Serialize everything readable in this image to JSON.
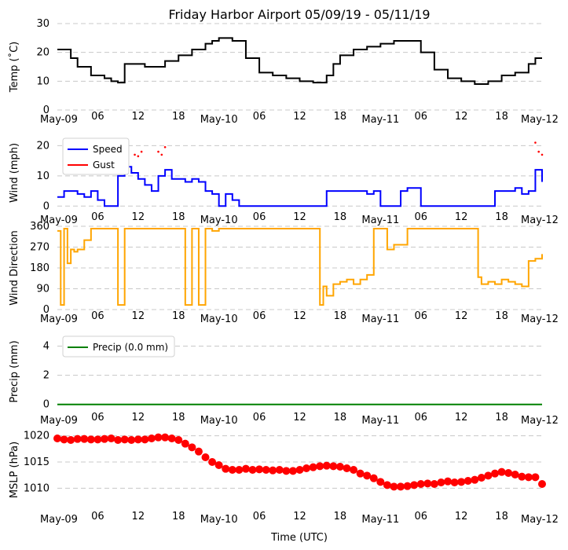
{
  "chart_data": [
    {
      "type": "line",
      "title": "Friday Harbor Airport 05/09/19 - 05/11/19",
      "ylabel": "Temp ($^\\circ$C)",
      "ylabel_display": "Temp (˚C)",
      "ylim": [
        0,
        30
      ],
      "yticks": [
        0,
        10,
        20,
        30
      ],
      "x_ticks": [
        "May-09",
        "06",
        "12",
        "18",
        "May-10",
        "06",
        "12",
        "18",
        "May-11",
        "06",
        "12",
        "18",
        "May-12"
      ],
      "x_hours_range": [
        0,
        72
      ],
      "grid": "y-dashed",
      "series": [
        {
          "name": "Temp",
          "color": "#000000",
          "x": [
            0,
            1,
            2,
            3,
            5,
            7,
            8,
            9,
            10,
            11,
            12,
            13,
            14,
            16,
            18,
            20,
            22,
            23,
            24,
            26,
            28,
            30,
            32,
            34,
            36,
            38,
            39,
            40,
            41,
            42,
            44,
            46,
            48,
            50,
            52,
            54,
            56,
            58,
            60,
            62,
            64,
            66,
            68,
            70,
            71,
            72
          ],
          "values": [
            21,
            21,
            18,
            15,
            12,
            11,
            10,
            9.5,
            16,
            16,
            16,
            15,
            15,
            17,
            19,
            21,
            23,
            24,
            25,
            24,
            18,
            13,
            12,
            11,
            10,
            9.5,
            9.5,
            12,
            16,
            19,
            21,
            22,
            23,
            24,
            24,
            20,
            14,
            11,
            10,
            9,
            10,
            12,
            13,
            16,
            18,
            18
          ]
        }
      ]
    },
    {
      "type": "line",
      "ylabel": "Wind (mph)",
      "ylim": [
        -2,
        24
      ],
      "yticks": [
        0,
        10,
        20
      ],
      "x_ticks": [
        "May-09",
        "06",
        "12",
        "18",
        "May-10",
        "06",
        "12",
        "18",
        "May-11",
        "06",
        "12",
        "18",
        "May-12"
      ],
      "legend": {
        "placement": "top-left",
        "entries": [
          "Speed",
          "Gust"
        ]
      },
      "grid": "y-dashed",
      "series": [
        {
          "name": "Speed",
          "color": "#0000ff",
          "x": [
            0,
            1,
            2,
            3,
            4,
            5,
            6,
            7,
            8,
            9,
            10,
            11,
            12,
            13,
            14,
            15,
            16,
            17,
            18,
            19,
            20,
            21,
            22,
            23,
            24,
            25,
            26,
            27,
            28,
            30,
            32,
            34,
            36,
            38,
            39,
            40,
            41,
            42,
            44,
            46,
            47,
            48,
            50,
            51,
            52,
            54,
            56,
            58,
            60,
            62,
            63,
            64,
            65,
            66,
            67,
            68,
            69,
            70,
            71,
            72
          ],
          "values": [
            3,
            5,
            5,
            4,
            3,
            5,
            2,
            0,
            0,
            10,
            13,
            11,
            9,
            7,
            5,
            10,
            12,
            9,
            9,
            8,
            9,
            8,
            5,
            4,
            0,
            4,
            2,
            0,
            0,
            0,
            0,
            0,
            0,
            0,
            0,
            5,
            5,
            5,
            5,
            4,
            5,
            0,
            0,
            5,
            6,
            0,
            0,
            0,
            0,
            0,
            0,
            0,
            5,
            5,
            5,
            6,
            4,
            5,
            12,
            8
          ]
        },
        {
          "name": "Gust",
          "color": "#ff0000",
          "x": [
            11.5,
            12,
            12.5,
            15,
            15.5,
            16,
            71,
            71.5,
            72
          ],
          "values": [
            17,
            16.5,
            18,
            18,
            17,
            19.5,
            21,
            18,
            17
          ]
        }
      ]
    },
    {
      "type": "line",
      "ylabel": "Wind Direction",
      "ylim": [
        0,
        360
      ],
      "yticks": [
        0,
        90,
        180,
        270,
        360
      ],
      "x_ticks": [
        "May-09",
        "06",
        "12",
        "18",
        "May-10",
        "06",
        "12",
        "18",
        "May-11",
        "06",
        "12",
        "18",
        "May-12"
      ],
      "grid": "y-dashed",
      "series": [
        {
          "name": "Direction",
          "color": "#ffa500",
          "x": [
            0,
            0.5,
            1,
            1.5,
            2,
            2.5,
            3,
            4,
            5,
            6,
            8,
            9,
            10,
            12,
            14,
            16,
            18,
            19,
            20,
            21,
            22,
            23,
            24,
            26,
            28,
            30,
            32,
            34,
            36,
            38,
            39,
            39.5,
            40,
            41,
            42,
            43,
            44,
            45,
            46,
            47,
            48,
            49,
            50,
            52,
            54,
            56,
            58,
            60,
            62,
            62.5,
            63,
            64,
            65,
            66,
            67,
            68,
            69,
            70,
            71,
            72
          ],
          "values": [
            340,
            20,
            350,
            200,
            260,
            250,
            260,
            300,
            350,
            350,
            350,
            20,
            350,
            350,
            350,
            350,
            350,
            20,
            350,
            20,
            350,
            340,
            350,
            350,
            350,
            350,
            350,
            350,
            350,
            350,
            20,
            100,
            60,
            110,
            120,
            130,
            110,
            130,
            150,
            350,
            350,
            260,
            280,
            350,
            350,
            350,
            350,
            350,
            350,
            140,
            110,
            120,
            110,
            130,
            120,
            110,
            100,
            210,
            220,
            240
          ]
        }
      ]
    },
    {
      "type": "line",
      "ylabel": "Precip (mm)",
      "ylim": [
        -0.5,
        5
      ],
      "yticks": [
        0,
        2,
        4
      ],
      "x_ticks": [
        "May-09",
        "06",
        "12",
        "18",
        "May-10",
        "06",
        "12",
        "18",
        "May-11",
        "06",
        "12",
        "18",
        "May-12"
      ],
      "legend": {
        "placement": "top-left",
        "entries": [
          "Precip (0.0 mm)"
        ]
      },
      "grid": "y-dashed",
      "series": [
        {
          "name": "Precip (0.0 mm)",
          "color": "#008000",
          "x": [
            0,
            72
          ],
          "values": [
            0,
            0
          ]
        }
      ]
    },
    {
      "type": "scatter",
      "ylabel": "MSLP (hPa)",
      "xlabel": "Time (UTC)",
      "ylim": [
        1006,
        1021
      ],
      "yticks": [
        1010,
        1015,
        1020
      ],
      "x_ticks": [
        "May-09",
        "06",
        "12",
        "18",
        "May-10",
        "06",
        "12",
        "18",
        "May-11",
        "06",
        "12",
        "18",
        "May-12"
      ],
      "grid": "y-dashed",
      "series": [
        {
          "name": "MSLP",
          "color": "#ff0000",
          "x": [
            0,
            1,
            2,
            3,
            4,
            5,
            6,
            7,
            8,
            9,
            10,
            11,
            12,
            13,
            14,
            15,
            16,
            17,
            18,
            19,
            20,
            21,
            22,
            23,
            24,
            25,
            26,
            27,
            28,
            29,
            30,
            31,
            32,
            33,
            34,
            35,
            36,
            37,
            38,
            39,
            40,
            41,
            42,
            43,
            44,
            45,
            46,
            47,
            48,
            49,
            50,
            51,
            52,
            53,
            54,
            55,
            56,
            57,
            58,
            59,
            60,
            61,
            62,
            63,
            64,
            65,
            66,
            67,
            68,
            69,
            70,
            71,
            72
          ],
          "values": [
            1019.5,
            1019.3,
            1019.2,
            1019.4,
            1019.4,
            1019.3,
            1019.3,
            1019.4,
            1019.5,
            1019.2,
            1019.3,
            1019.2,
            1019.3,
            1019.3,
            1019.5,
            1019.7,
            1019.7,
            1019.5,
            1019.2,
            1018.5,
            1017.8,
            1017.0,
            1015.9,
            1015.0,
            1014.4,
            1013.7,
            1013.5,
            1013.5,
            1013.7,
            1013.5,
            1013.6,
            1013.5,
            1013.4,
            1013.5,
            1013.3,
            1013.3,
            1013.5,
            1013.8,
            1014.0,
            1014.2,
            1014.3,
            1014.2,
            1014.1,
            1013.8,
            1013.5,
            1012.8,
            1012.4,
            1011.9,
            1011.2,
            1010.6,
            1010.3,
            1010.3,
            1010.4,
            1010.6,
            1010.8,
            1010.9,
            1010.8,
            1011.1,
            1011.3,
            1011.1,
            1011.2,
            1011.4,
            1011.6,
            1012.0,
            1012.4,
            1012.8,
            1013.1,
            1012.9,
            1012.6,
            1012.2,
            1012.1,
            1012.1,
            1010.8
          ]
        }
      ]
    }
  ],
  "xlabel": "Time (UTC)"
}
